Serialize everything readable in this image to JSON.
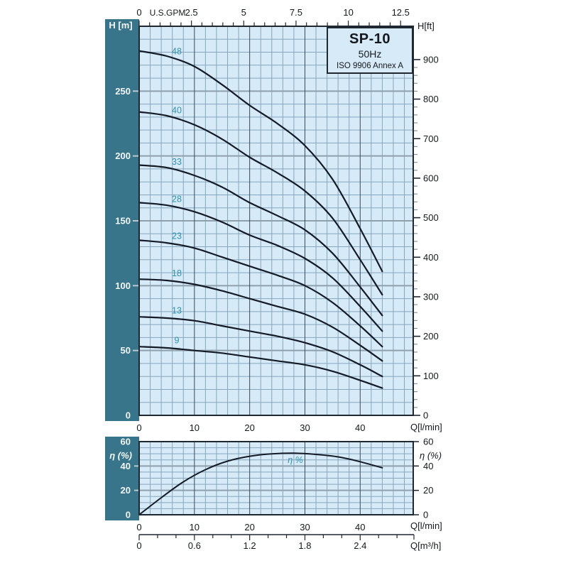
{
  "header": {
    "model": "SP-10",
    "frequency": "50Hz",
    "standard": "ISO 9906 Annex A"
  },
  "colors": {
    "sidebar_teal": "#38748a",
    "plot_bg": "#d6eaf7",
    "grid_minor": "#87a6bd",
    "grid_major_v": "#39495c",
    "grid_major_h": "#8fa0ad",
    "axis_dark": "#1f2731",
    "tick_minor": "#8b949c",
    "left_tick": "#bcc8d1",
    "curve": "#141a26",
    "curve_label": "#2f93ae",
    "text_dark": "#15181c",
    "text_light": "#f4f7f9"
  },
  "labels": {
    "head_unit_left": "H [m]",
    "head_unit_right": "H[ft]",
    "top_axis_unit": "U.S.GPM",
    "flow_unit_lmin_main": "Q[l/min]",
    "flow_unit_lmin_eff": "Q[l/min]",
    "flow_unit_m3h": "Q[m³/h]",
    "eff_unit_left": "η (%)",
    "eff_unit_right": "η (%)",
    "eff_curve_label": "η %"
  },
  "chart_data": [
    {
      "type": "line",
      "title": "SP-10 50Hz pump head curves",
      "xlabel": "Q[l/min]",
      "xlabel_top": "U.S.GPM",
      "ylabel_left": "H [m]",
      "ylabel_right": "H[ft]",
      "x_range_lmin": [
        0,
        49.6
      ],
      "x_ticks_lmin": [
        0,
        10,
        20,
        30,
        40
      ],
      "x_ticks_usgpm": [
        0,
        2.5,
        5,
        7.5,
        10,
        12.5
      ],
      "y_range_m": [
        0,
        300
      ],
      "y_ticks_m": [
        0,
        50,
        100,
        150,
        200,
        250
      ],
      "y_ticks_ft": [
        0,
        100,
        200,
        300,
        400,
        500,
        600,
        700,
        800,
        900
      ],
      "grid": {
        "minor_x_lmin": 2,
        "major_x_lmin": 10,
        "minor_y_m": 10,
        "major_y_m": 50
      },
      "x": [
        0,
        5,
        10,
        15,
        20,
        25,
        30,
        35,
        40,
        44
      ],
      "series": [
        {
          "name": "48",
          "values": [
            281,
            277,
            269,
            255,
            239,
            225,
            208,
            182,
            144,
            111
          ]
        },
        {
          "name": "40",
          "values": [
            234,
            231,
            224,
            213,
            199,
            187,
            173,
            152,
            120,
            93
          ]
        },
        {
          "name": "33",
          "values": [
            193,
            191,
            185,
            176,
            164,
            154,
            143,
            125,
            99,
            77
          ]
        },
        {
          "name": "28",
          "values": [
            164,
            162,
            157,
            149,
            139,
            131,
            121,
            106,
            84,
            65
          ]
        },
        {
          "name": "23",
          "values": [
            135,
            133,
            129,
            122,
            115,
            108,
            100,
            87,
            69,
            53
          ]
        },
        {
          "name": "18",
          "values": [
            105,
            104,
            101,
            96,
            90,
            84,
            78,
            68,
            54,
            42
          ]
        },
        {
          "name": "13",
          "values": [
            76,
            75,
            73,
            69,
            65,
            61,
            56,
            49,
            39,
            30
          ]
        },
        {
          "name": "9",
          "values": [
            53,
            52,
            50,
            48,
            45,
            42,
            39,
            34,
            27,
            21
          ]
        }
      ]
    },
    {
      "type": "line",
      "title": "Efficiency curve",
      "xlabel": "Q[l/min]",
      "xlabel_m3h": "Q[m³/h]",
      "ylabel": "η (%)",
      "curve_label": "η %",
      "y_range": [
        0,
        60
      ],
      "y_ticks": [
        0,
        20,
        40,
        60
      ],
      "x_ticks_lmin": [
        0,
        10,
        20,
        30,
        40
      ],
      "x_ticks_m3h": [
        0,
        0.6,
        1.2,
        1.8,
        2.4
      ],
      "grid": {
        "minor_x_lmin": 2,
        "major_x_lmin": 10,
        "minor_y_pct": 5,
        "major_y_pct": 20
      },
      "x": [
        0,
        4,
        8,
        12,
        16,
        20,
        24,
        28,
        32,
        36,
        40,
        44
      ],
      "values": [
        0,
        14,
        27,
        37,
        44,
        48,
        50,
        50.5,
        49.5,
        47.5,
        43.5,
        38.5
      ]
    }
  ]
}
